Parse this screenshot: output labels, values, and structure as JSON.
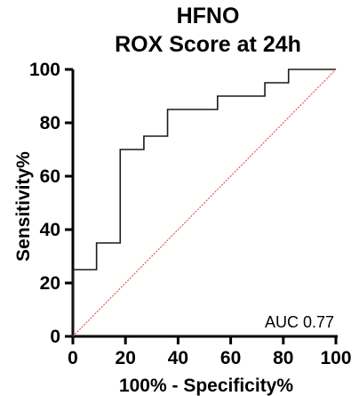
{
  "chart_data": {
    "type": "line",
    "title_lines": [
      "HFNO",
      "ROX Score at 24h"
    ],
    "xlabel": "100% - Specificity%",
    "ylabel": "Sensitivity%",
    "xlim": [
      0,
      100
    ],
    "ylim": [
      0,
      100
    ],
    "xticks": [
      0,
      20,
      40,
      60,
      80,
      100
    ],
    "yticks": [
      0,
      20,
      40,
      60,
      80,
      100
    ],
    "grid": false,
    "series": [
      {
        "style": "step",
        "color": "#1a1a1a",
        "x": [
          0,
          0,
          9,
          9,
          18,
          18,
          27,
          27,
          36,
          36,
          55,
          55,
          73,
          73,
          82,
          82,
          100
        ],
        "y": [
          0,
          25,
          25,
          35,
          35,
          70,
          70,
          75,
          75,
          85,
          85,
          90,
          90,
          95,
          95,
          100,
          100
        ]
      },
      {
        "style": "dotted",
        "color": "#e8392b",
        "x": [
          0,
          100
        ],
        "y": [
          0,
          100
        ]
      }
    ],
    "annotations": [
      {
        "text": "AUC 0.77"
      }
    ]
  }
}
